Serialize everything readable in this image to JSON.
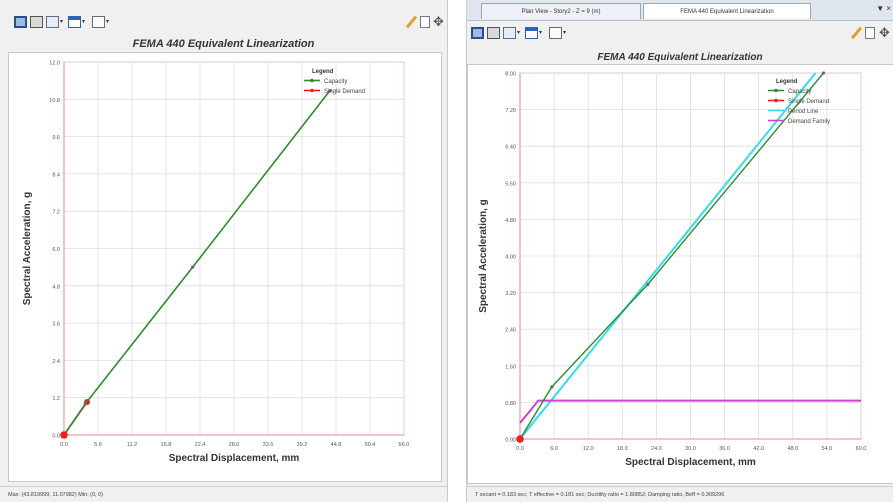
{
  "left_panel": {
    "status_text": "Max: (43.819999, 11.07982)   Min: (0, 0)",
    "chart_data": {
      "type": "line",
      "title": "FEMA 440 Equivalent Linearization",
      "xlabel": "Spectral Displacement, mm",
      "ylabel": "Spectral Acceleration, g",
      "xlim": [
        0,
        56
      ],
      "ylim": [
        0,
        12
      ],
      "xticks": [
        "0.0",
        "5.6",
        "11.2",
        "16.8",
        "22.4",
        "28.0",
        "33.6",
        "39.2",
        "44.8",
        "50.4",
        "56.0"
      ],
      "yticks": [
        "0.0",
        "1.2",
        "2.4",
        "3.6",
        "4.8",
        "6.0",
        "7.2",
        "8.4",
        "9.6",
        "10.8",
        "12.0"
      ],
      "grid": true,
      "legend": {
        "title": "Legend",
        "placement": "top-right"
      },
      "series": [
        {
          "name": "Capacity",
          "color": "#2e8b2e",
          "x": [
            0,
            3.5,
            21.2,
            43.8
          ],
          "y": [
            0,
            1.0,
            5.4,
            11.08
          ],
          "markers": [
            3.5,
            21.2,
            43.8
          ]
        },
        {
          "name": "Single Demand",
          "color": "#e82020",
          "x": [
            0,
            3.8
          ],
          "y": [
            0,
            1.06
          ]
        }
      ],
      "points": [
        {
          "x": 0,
          "y": 0,
          "color": "#e82020"
        }
      ]
    }
  },
  "right_panel": {
    "tabs": [
      {
        "label": "Plan View - Story2 - Z = 9 (m)"
      },
      {
        "label": "FEMA 440 Equivalent Linearization"
      }
    ],
    "tab_arrow": "▼ ×",
    "status_text": "T secant = 0.183 sec;  T effective = 0.181 sec;  Ductility ratio = 1.80852;  Damping ratio, Beff = 0.309296",
    "chart_data": {
      "type": "line",
      "title": "FEMA 440 Equivalent Linearization",
      "xlabel": "Spectral Displacement, mm",
      "ylabel": "Spectral Acceleration, g",
      "xlim": [
        0,
        60
      ],
      "ylim": [
        0,
        8
      ],
      "xticks": [
        "0.0",
        "6.0",
        "12.0",
        "18.0",
        "24.0",
        "30.0",
        "36.0",
        "42.0",
        "48.0",
        "54.0",
        "60.0"
      ],
      "yticks": [
        "0.00",
        "0.80",
        "1.60",
        "2.40",
        "3.20",
        "4.00",
        "4.80",
        "5.60",
        "6.40",
        "7.20",
        "8.00"
      ],
      "grid": true,
      "legend": {
        "title": "Legend",
        "placement": "top-right"
      },
      "series": [
        {
          "name": "Capacity",
          "color": "#2e8b2e",
          "x": [
            0,
            5.6,
            22.5,
            53.4
          ],
          "y": [
            0,
            1.14,
            3.38,
            8.0
          ],
          "markers": [
            5.6,
            22.5,
            53.4
          ]
        },
        {
          "name": "Single Demand",
          "color": "#e82020",
          "x": [
            0
          ],
          "y": [
            0
          ]
        },
        {
          "name": "Period Line",
          "color": "#33dde8",
          "x": [
            0,
            52
          ],
          "y": [
            0,
            8.0
          ]
        },
        {
          "name": "Demand Family",
          "color": "#d040d0",
          "x": [
            0,
            2.0,
            3.2,
            60
          ],
          "y": [
            0.35,
            0.65,
            0.84,
            0.84
          ]
        }
      ],
      "points": [
        {
          "x": 0,
          "y": 0,
          "color": "#e82020"
        }
      ]
    }
  }
}
